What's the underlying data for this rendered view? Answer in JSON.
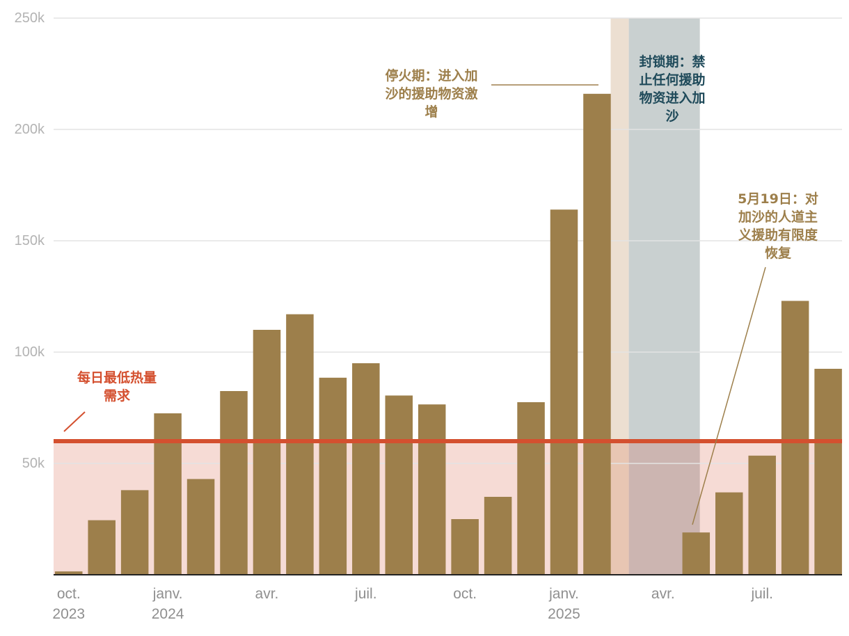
{
  "chart_data": {
    "type": "bar",
    "title": "",
    "xlabel": "",
    "ylabel": "",
    "ylim": [
      0,
      250000
    ],
    "yticks": [
      {
        "value": 50000,
        "label": "50k"
      },
      {
        "value": 100000,
        "label": "100k"
      },
      {
        "value": 150000,
        "label": "150k"
      },
      {
        "value": 200000,
        "label": "200k"
      },
      {
        "value": 250000,
        "label": "250k"
      }
    ],
    "categories": [
      "2023-10",
      "2023-11",
      "2023-12",
      "2024-01",
      "2024-02",
      "2024-03",
      "2024-04",
      "2024-05",
      "2024-06",
      "2024-07",
      "2024-08",
      "2024-09",
      "2024-10",
      "2024-11",
      "2024-12",
      "2025-01",
      "2025-02",
      "2025-03",
      "2025-04",
      "2025-05",
      "2025-06",
      "2025-07",
      "2025-08",
      "2025-09"
    ],
    "values": [
      1500,
      24500,
      38000,
      72500,
      43000,
      82500,
      110000,
      117000,
      88500,
      95000,
      80500,
      76500,
      25000,
      35000,
      77500,
      164000,
      216000,
      0,
      0,
      19000,
      37000,
      53500,
      123000,
      92500
    ],
    "x_ticks": [
      {
        "index": 0,
        "lines": [
          "oct.",
          "2023"
        ]
      },
      {
        "index": 3,
        "lines": [
          "janv.",
          "2024"
        ]
      },
      {
        "index": 6,
        "lines": [
          "avr."
        ]
      },
      {
        "index": 9,
        "lines": [
          "juil."
        ]
      },
      {
        "index": 12,
        "lines": [
          "oct."
        ]
      },
      {
        "index": 15,
        "lines": [
          "janv.",
          "2025"
        ]
      },
      {
        "index": 18,
        "lines": [
          "avr."
        ]
      },
      {
        "index": 21,
        "lines": [
          "juil."
        ]
      }
    ],
    "threshold": {
      "value": 60000,
      "label_lines": [
        "每日最低热量",
        "需求"
      ],
      "color": "#d4502f",
      "fill": "#f6dbd5"
    },
    "bar_color": "#9d7f4b",
    "ceasefire_band": {
      "from_index": 16.85,
      "to_index": 17.4,
      "color": "#ecdfd1"
    },
    "blockade_band": {
      "from_index": 17.4,
      "to_index": 19.55,
      "color": "#c9d0d0"
    },
    "annotations": [
      {
        "name": "ceasefire",
        "lines": [
          "停火期：进入加",
          "沙的援助物资激",
          "增"
        ],
        "color": "#9d7f4b"
      },
      {
        "name": "blockade",
        "lines": [
          "封锁期：禁",
          "止任何援助",
          "物资进入加",
          "沙"
        ],
        "color": "#1f4a5a"
      },
      {
        "name": "may-19",
        "lines": [
          "5月19日：对",
          "加沙的人道主",
          "义援助有限度",
          "恢复"
        ],
        "color": "#9d7f4b"
      }
    ]
  }
}
